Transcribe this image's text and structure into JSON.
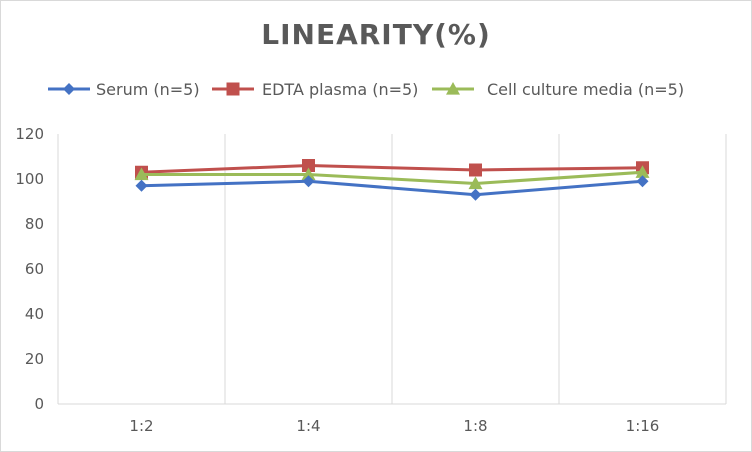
{
  "chart_data": {
    "type": "line",
    "title": "LINEARITY(%)",
    "categories": [
      "1:2",
      "1:4",
      "1:8",
      "1:16"
    ],
    "series": [
      {
        "name": "Serum (n=5)",
        "values": [
          97,
          99,
          93,
          99
        ],
        "color": "#4472c4",
        "marker": "diamond"
      },
      {
        "name": "EDTA plasma (n=5)",
        "values": [
          103,
          106,
          104,
          105
        ],
        "color": "#c0504d",
        "marker": "square"
      },
      {
        "name": "Cell culture media (n=5)",
        "values": [
          102,
          102,
          98,
          103
        ],
        "color": "#9bbb59",
        "marker": "triangle"
      }
    ],
    "ylim": [
      0,
      120
    ],
    "yticks": [
      0,
      20,
      40,
      60,
      80,
      100,
      120
    ],
    "xlabel": "",
    "ylabel": "",
    "grid": "vertical",
    "legend": "top"
  }
}
